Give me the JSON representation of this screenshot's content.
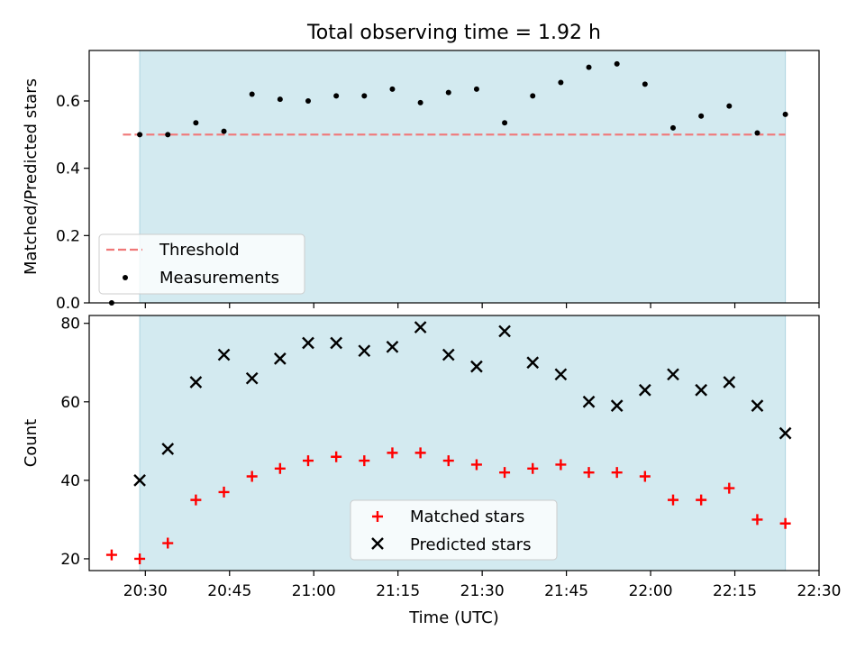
{
  "title": "Total observing time = 1.92 h",
  "xlabel": "Time (UTC)",
  "x_ticks": [
    "20:30",
    "20:45",
    "21:00",
    "21:15",
    "21:30",
    "21:45",
    "22:00",
    "22:15",
    "22:30"
  ],
  "colors": {
    "shade": "#d3eaf0",
    "shade_edge": "#aed4e0",
    "threshold": "#f07878",
    "measurement": "#000000",
    "matched": "#ff0000",
    "predicted": "#000000"
  },
  "chart_data": [
    {
      "type": "scatter",
      "panel": "top",
      "ylabel": "Matched/Predicted stars",
      "xlim": [
        "20:20",
        "22:30"
      ],
      "ylim": [
        0,
        0.75
      ],
      "y_ticks": [
        "0.0",
        "0.2",
        "0.4",
        "0.6"
      ],
      "observing_window": [
        "20:29",
        "22:24"
      ],
      "threshold": {
        "name": "Threshold",
        "value": 0.5,
        "x_range": [
          "20:26",
          "22:24"
        ]
      },
      "series": [
        {
          "name": "Measurements",
          "x": [
            "20:24",
            "20:29",
            "20:34",
            "20:39",
            "20:44",
            "20:49",
            "20:54",
            "20:59",
            "21:04",
            "21:09",
            "21:14",
            "21:19",
            "21:24",
            "21:29",
            "21:34",
            "21:39",
            "21:44",
            "21:49",
            "21:54",
            "21:59",
            "22:04",
            "22:09",
            "22:14",
            "22:19",
            "22:24"
          ],
          "y": [
            0.0,
            0.5,
            0.5,
            0.535,
            0.51,
            0.62,
            0.605,
            0.6,
            0.615,
            0.615,
            0.635,
            0.595,
            0.625,
            0.635,
            0.535,
            0.615,
            0.655,
            0.7,
            0.71,
            0.65,
            0.52,
            0.555,
            0.585,
            0.505,
            0.56
          ]
        }
      ],
      "legend": {
        "position": "lower-left",
        "entries": [
          "Threshold",
          "Measurements"
        ]
      }
    },
    {
      "type": "scatter",
      "panel": "bottom",
      "ylabel": "Count",
      "ylim": [
        17,
        82
      ],
      "y_ticks": [
        "20",
        "40",
        "60",
        "80"
      ],
      "series": [
        {
          "name": "Matched stars",
          "marker": "plus",
          "x": [
            "20:24",
            "20:29",
            "20:34",
            "20:39",
            "20:44",
            "20:49",
            "20:54",
            "20:59",
            "21:04",
            "21:09",
            "21:14",
            "21:19",
            "21:24",
            "21:29",
            "21:34",
            "21:39",
            "21:44",
            "21:49",
            "21:54",
            "21:59",
            "22:04",
            "22:09",
            "22:14",
            "22:19",
            "22:24"
          ],
          "y": [
            21,
            20,
            24,
            35,
            37,
            41,
            43,
            45,
            46,
            45,
            47,
            47,
            45,
            44,
            42,
            43,
            44,
            42,
            42,
            41,
            35,
            35,
            38,
            30,
            29
          ]
        },
        {
          "name": "Predicted stars",
          "marker": "x",
          "x": [
            "20:29",
            "20:34",
            "20:39",
            "20:44",
            "20:49",
            "20:54",
            "20:59",
            "21:04",
            "21:09",
            "21:14",
            "21:19",
            "21:24",
            "21:29",
            "21:34",
            "21:39",
            "21:44",
            "21:49",
            "21:54",
            "21:59",
            "22:04",
            "22:09",
            "22:14",
            "22:19",
            "22:24"
          ],
          "y": [
            40,
            48,
            65,
            72,
            66,
            71,
            75,
            75,
            73,
            74,
            79,
            72,
            69,
            78,
            70,
            67,
            60,
            59,
            63,
            67,
            63,
            65,
            59,
            52
          ]
        }
      ],
      "legend": {
        "position": "lower-center",
        "entries": [
          "Matched stars",
          "Predicted stars"
        ]
      }
    }
  ]
}
